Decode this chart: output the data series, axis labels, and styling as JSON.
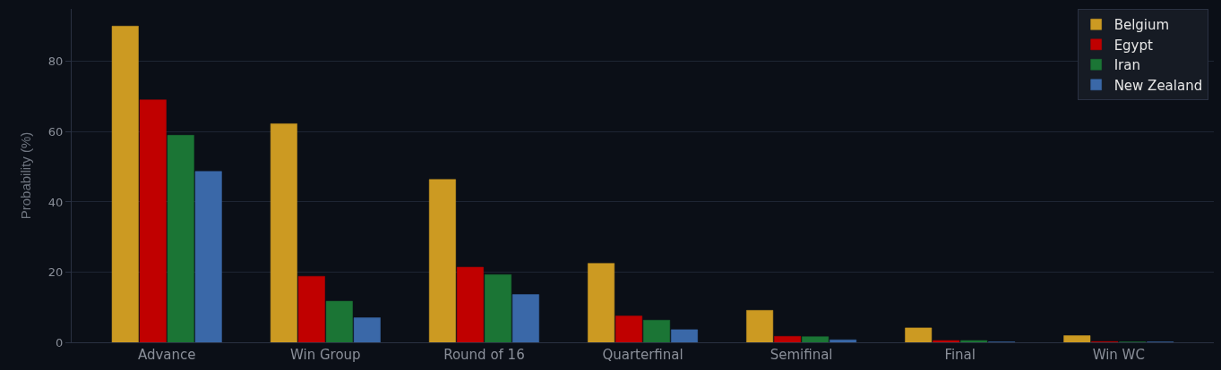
{
  "chart_data": {
    "type": "bar",
    "ylabel": "Probability (%)",
    "categories": [
      "Advance",
      "Win Group",
      "Round of 16",
      "Quarterfinal",
      "Semifinal",
      "Final",
      "Win WC"
    ],
    "series": [
      {
        "name": "Belgium",
        "color": "#cc9a22",
        "values": [
          90.1,
          62.3,
          46.4,
          22.5,
          9.1,
          4.1,
          1.9
        ]
      },
      {
        "name": "Egypt",
        "color": "#c00000",
        "values": [
          69.1,
          18.8,
          21.4,
          7.5,
          1.7,
          0.5,
          0.2
        ]
      },
      {
        "name": "Iran",
        "color": "#1b7535",
        "values": [
          59.0,
          11.7,
          19.3,
          6.3,
          1.6,
          0.5,
          0.1
        ]
      },
      {
        "name": "New Zealand",
        "color": "#3a68a8",
        "values": [
          48.7,
          7.0,
          13.6,
          3.6,
          0.7,
          0.1,
          0.1
        ]
      }
    ],
    "ylim": [
      0,
      95
    ],
    "yticks": [
      0,
      20,
      40,
      60,
      80
    ],
    "grid": "y",
    "legend": "top right"
  }
}
